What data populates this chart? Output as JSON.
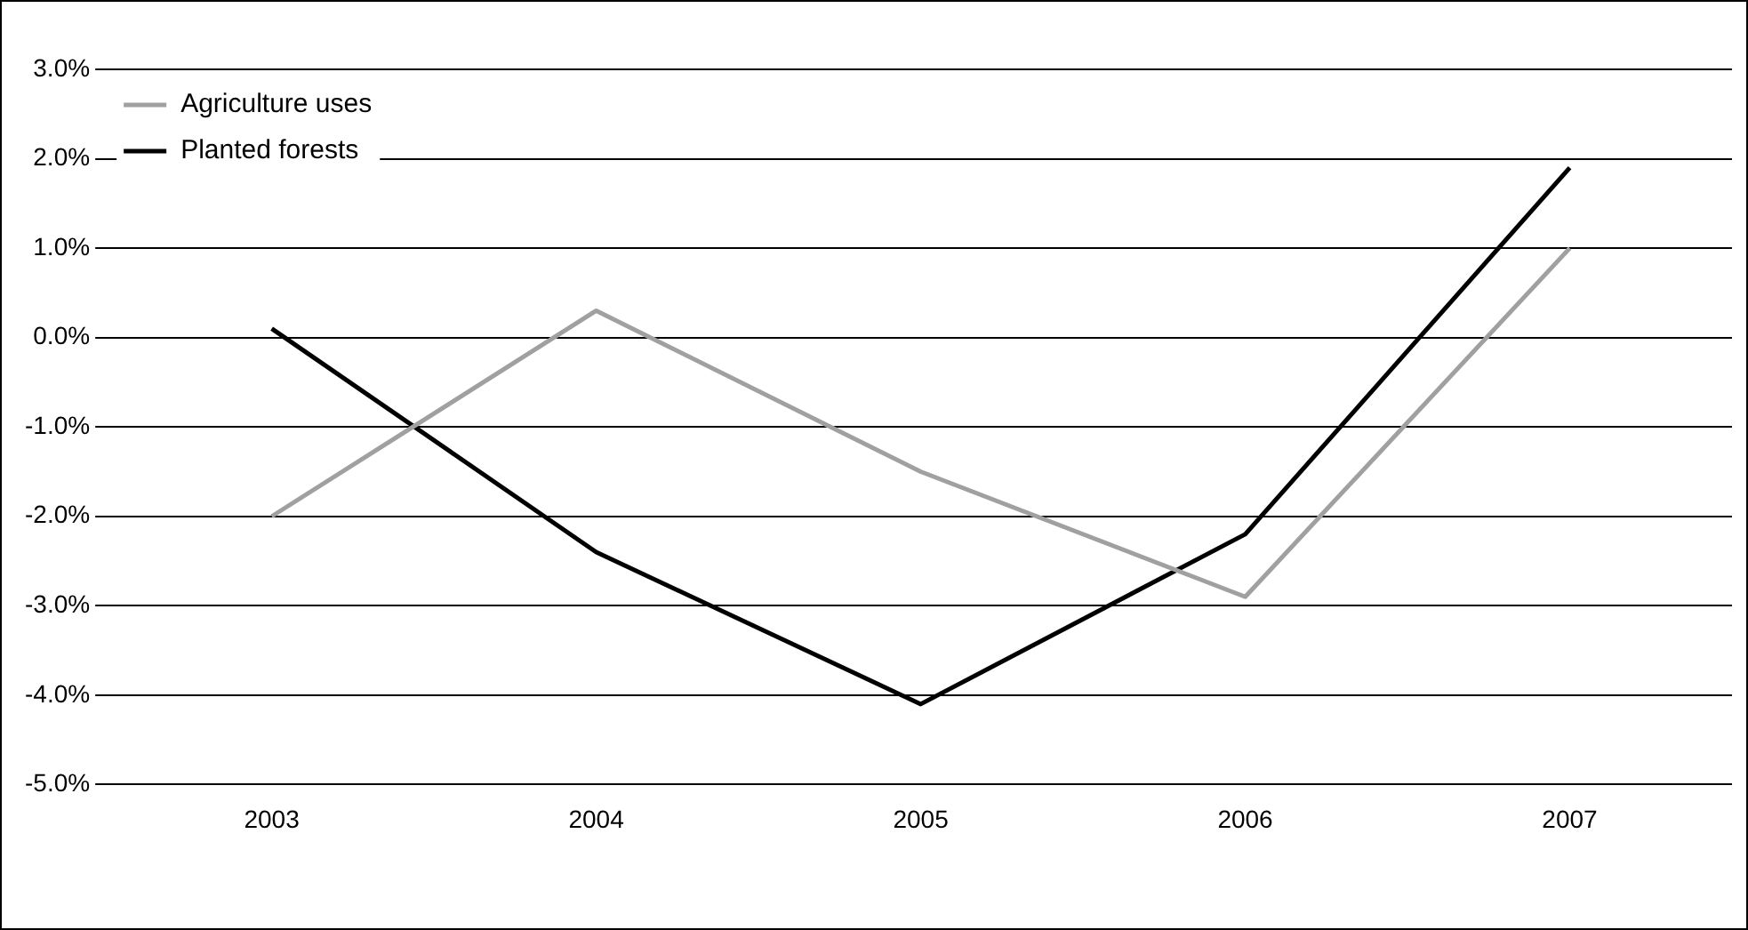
{
  "chart_data": {
    "type": "line",
    "categories": [
      "2003",
      "2004",
      "2005",
      "2006",
      "2007"
    ],
    "series": [
      {
        "name": "Agriculture uses",
        "color": "#a0a0a0",
        "values": [
          -2.0,
          0.3,
          -1.5,
          -2.9,
          1.0
        ]
      },
      {
        "name": "Planted forests",
        "color": "#000000",
        "values": [
          0.1,
          -2.4,
          -4.1,
          -2.2,
          1.9
        ]
      }
    ],
    "ylim": [
      -5,
      3
    ],
    "yticks": [
      {
        "value": -5,
        "label": "-5.0%"
      },
      {
        "value": -4,
        "label": "-4.0%"
      },
      {
        "value": -3,
        "label": "-3.0%"
      },
      {
        "value": -2,
        "label": "-2.0%"
      },
      {
        "value": -1,
        "label": "-1.0%"
      },
      {
        "value": 0,
        "label": "0.0%"
      },
      {
        "value": 1,
        "label": "1.0%"
      },
      {
        "value": 2,
        "label": "2.0%"
      },
      {
        "value": 3,
        "label": "3.0%"
      }
    ],
    "grid": "y",
    "legend": "top left",
    "marker": "none",
    "line_style": "solid"
  }
}
